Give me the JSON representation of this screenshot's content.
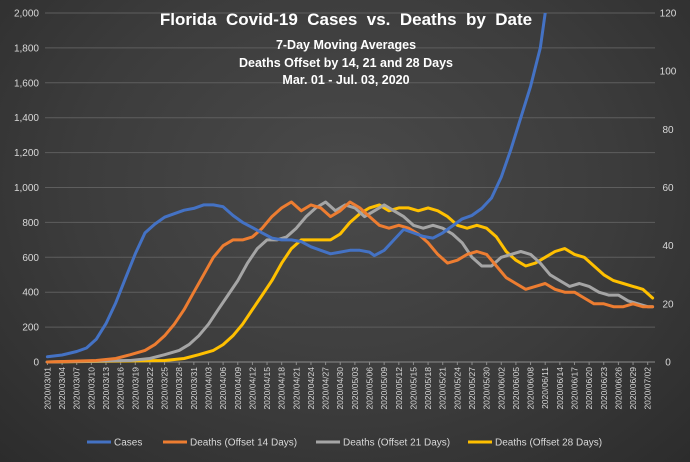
{
  "chart_data": {
    "type": "line",
    "title_lines": [
      "Florida  Covid-19  Cases  vs.  Deaths  by  Date",
      "7-Day Moving Averages",
      "Deaths Offset by 14, 21 and 28 Days",
      "Mar. 01 - Jul. 03, 2020"
    ],
    "y_left": {
      "min": 0,
      "max": 2000,
      "ticks": [
        "0",
        "200",
        "400",
        "600",
        "800",
        "1,000",
        "1,200",
        "1,400",
        "1,600",
        "1,800",
        "2,000"
      ]
    },
    "y_right": {
      "min": 0,
      "max": 120,
      "ticks": [
        "0",
        "20",
        "40",
        "60",
        "80",
        "100",
        "120"
      ]
    },
    "x_start": "2020/03/01",
    "x_days": 125,
    "x_tick_labels": [
      "2020/03/01",
      "2020/03/04",
      "2020/03/07",
      "2020/03/10",
      "2020/03/13",
      "2020/03/16",
      "2020/03/19",
      "2020/03/22",
      "2020/03/25",
      "2020/03/28",
      "2020/03/31",
      "2020/04/03",
      "2020/04/06",
      "2020/04/09",
      "2020/04/12",
      "2020/04/15",
      "2020/04/18",
      "2020/04/21",
      "2020/04/24",
      "2020/04/27",
      "2020/04/30",
      "2020/05/03",
      "2020/05/06",
      "2020/05/09",
      "2020/05/12",
      "2020/05/15",
      "2020/05/18",
      "2020/05/21",
      "2020/05/24",
      "2020/05/27",
      "2020/05/30",
      "2020/06/02",
      "2020/06/05",
      "2020/06/08",
      "2020/06/11",
      "2020/06/14",
      "2020/06/17",
      "2020/06/20",
      "2020/06/23",
      "2020/06/26",
      "2020/06/29",
      "2020/07/02"
    ],
    "grid": true,
    "legend_position": "bottom",
    "series": [
      {
        "name": "Cases",
        "axis": "left",
        "color": "#4472c4",
        "points": [
          [
            0,
            30
          ],
          [
            3,
            40
          ],
          [
            6,
            60
          ],
          [
            8,
            80
          ],
          [
            10,
            130
          ],
          [
            12,
            220
          ],
          [
            14,
            340
          ],
          [
            16,
            480
          ],
          [
            18,
            620
          ],
          [
            20,
            740
          ],
          [
            22,
            790
          ],
          [
            24,
            830
          ],
          [
            26,
            850
          ],
          [
            28,
            870
          ],
          [
            30,
            880
          ],
          [
            32,
            900
          ],
          [
            34,
            900
          ],
          [
            36,
            890
          ],
          [
            38,
            840
          ],
          [
            40,
            800
          ],
          [
            42,
            770
          ],
          [
            44,
            740
          ],
          [
            46,
            710
          ],
          [
            48,
            700
          ],
          [
            50,
            700
          ],
          [
            52,
            690
          ],
          [
            54,
            660
          ],
          [
            56,
            640
          ],
          [
            58,
            620
          ],
          [
            60,
            630
          ],
          [
            62,
            640
          ],
          [
            64,
            640
          ],
          [
            66,
            630
          ],
          [
            67,
            610
          ],
          [
            69,
            640
          ],
          [
            71,
            700
          ],
          [
            73,
            760
          ],
          [
            75,
            740
          ],
          [
            77,
            720
          ],
          [
            79,
            710
          ],
          [
            81,
            740
          ],
          [
            83,
            780
          ],
          [
            85,
            820
          ],
          [
            87,
            840
          ],
          [
            89,
            880
          ],
          [
            91,
            940
          ],
          [
            93,
            1060
          ],
          [
            95,
            1220
          ],
          [
            97,
            1400
          ],
          [
            99,
            1580
          ],
          [
            101,
            1800
          ],
          [
            102,
            2000
          ]
        ]
      },
      {
        "name": "Deaths (Offset 14 Days)",
        "axis": "right",
        "color": "#ed7d31",
        "points": [
          [
            0,
            0
          ],
          [
            10,
            0.5
          ],
          [
            14,
            1.2
          ],
          [
            17,
            2.5
          ],
          [
            20,
            4
          ],
          [
            22,
            6
          ],
          [
            24,
            9
          ],
          [
            26,
            13
          ],
          [
            28,
            18
          ],
          [
            30,
            24
          ],
          [
            32,
            30
          ],
          [
            34,
            36
          ],
          [
            36,
            40
          ],
          [
            38,
            42
          ],
          [
            40,
            42
          ],
          [
            42,
            43
          ],
          [
            44,
            46
          ],
          [
            46,
            50
          ],
          [
            48,
            53
          ],
          [
            50,
            55
          ],
          [
            52,
            52
          ],
          [
            54,
            54
          ],
          [
            56,
            53
          ],
          [
            58,
            50
          ],
          [
            60,
            52
          ],
          [
            62,
            55
          ],
          [
            64,
            53
          ],
          [
            66,
            50
          ],
          [
            68,
            47
          ],
          [
            70,
            46
          ],
          [
            72,
            47
          ],
          [
            74,
            46
          ],
          [
            76,
            44
          ],
          [
            78,
            41
          ],
          [
            80,
            37
          ],
          [
            82,
            34
          ],
          [
            84,
            35
          ],
          [
            86,
            37
          ],
          [
            88,
            38
          ],
          [
            90,
            37
          ],
          [
            92,
            33
          ],
          [
            94,
            29
          ],
          [
            96,
            27
          ],
          [
            98,
            25
          ],
          [
            100,
            26
          ],
          [
            102,
            27
          ],
          [
            104,
            25
          ],
          [
            106,
            24
          ],
          [
            108,
            24
          ],
          [
            110,
            22
          ],
          [
            112,
            20
          ],
          [
            114,
            20
          ],
          [
            116,
            19
          ],
          [
            118,
            19
          ],
          [
            120,
            20
          ],
          [
            122,
            19
          ],
          [
            124,
            19
          ]
        ]
      },
      {
        "name": "Deaths (Offset 21 Days)",
        "axis": "right",
        "color": "#a5a5a5",
        "points": [
          [
            0,
            0
          ],
          [
            17,
            0.5
          ],
          [
            21,
            1.2
          ],
          [
            24,
            2.5
          ],
          [
            27,
            4
          ],
          [
            29,
            6
          ],
          [
            31,
            9
          ],
          [
            33,
            13
          ],
          [
            35,
            18
          ],
          [
            37,
            23
          ],
          [
            39,
            28
          ],
          [
            41,
            34
          ],
          [
            43,
            39
          ],
          [
            45,
            42
          ],
          [
            47,
            42
          ],
          [
            49,
            43
          ],
          [
            51,
            46
          ],
          [
            53,
            50
          ],
          [
            55,
            53
          ],
          [
            57,
            55
          ],
          [
            59,
            52
          ],
          [
            61,
            54
          ],
          [
            63,
            53
          ],
          [
            65,
            50
          ],
          [
            67,
            52
          ],
          [
            69,
            54
          ],
          [
            71,
            52
          ],
          [
            73,
            50
          ],
          [
            75,
            47
          ],
          [
            77,
            46
          ],
          [
            79,
            47
          ],
          [
            81,
            46
          ],
          [
            83,
            44
          ],
          [
            85,
            41
          ],
          [
            87,
            36
          ],
          [
            89,
            33
          ],
          [
            91,
            33
          ],
          [
            93,
            36
          ],
          [
            95,
            37
          ],
          [
            97,
            38
          ],
          [
            99,
            37
          ],
          [
            101,
            34
          ],
          [
            103,
            30
          ],
          [
            105,
            28
          ],
          [
            107,
            26
          ],
          [
            109,
            27
          ],
          [
            111,
            26
          ],
          [
            113,
            24
          ],
          [
            115,
            23
          ],
          [
            117,
            23
          ],
          [
            119,
            21
          ],
          [
            121,
            20
          ],
          [
            123,
            19
          ],
          [
            124,
            19
          ]
        ]
      },
      {
        "name": "Deaths (Offset 28 Days)",
        "axis": "right",
        "color": "#ffc000",
        "points": [
          [
            0,
            0
          ],
          [
            24,
            0.5
          ],
          [
            28,
            1.2
          ],
          [
            31,
            2.5
          ],
          [
            34,
            4
          ],
          [
            36,
            6
          ],
          [
            38,
            9
          ],
          [
            40,
            13
          ],
          [
            42,
            18
          ],
          [
            44,
            23
          ],
          [
            46,
            28
          ],
          [
            48,
            34
          ],
          [
            50,
            39
          ],
          [
            52,
            42
          ],
          [
            54,
            42
          ],
          [
            56,
            42
          ],
          [
            58,
            42
          ],
          [
            60,
            44
          ],
          [
            62,
            48
          ],
          [
            64,
            51
          ],
          [
            66,
            53
          ],
          [
            68,
            54
          ],
          [
            70,
            52
          ],
          [
            72,
            53
          ],
          [
            74,
            53
          ],
          [
            76,
            52
          ],
          [
            78,
            53
          ],
          [
            80,
            52
          ],
          [
            82,
            50
          ],
          [
            84,
            47
          ],
          [
            86,
            46
          ],
          [
            88,
            47
          ],
          [
            90,
            46
          ],
          [
            92,
            43
          ],
          [
            94,
            38
          ],
          [
            96,
            35
          ],
          [
            98,
            33
          ],
          [
            100,
            34
          ],
          [
            102,
            36
          ],
          [
            104,
            38
          ],
          [
            106,
            39
          ],
          [
            108,
            37
          ],
          [
            110,
            36
          ],
          [
            112,
            33
          ],
          [
            114,
            30
          ],
          [
            116,
            28
          ],
          [
            118,
            27
          ],
          [
            120,
            26
          ],
          [
            122,
            25
          ],
          [
            124,
            22
          ]
        ]
      }
    ]
  }
}
